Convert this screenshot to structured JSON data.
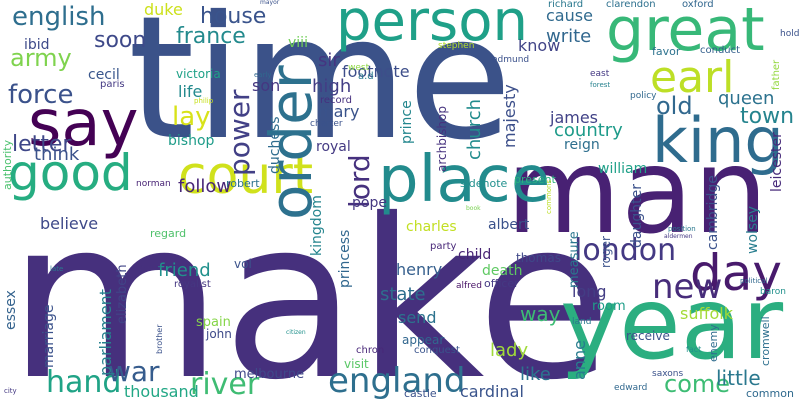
{
  "words": [
    {
      "text": "make",
      "color": "#46307d"
    },
    {
      "text": "time",
      "color": "#3b5289"
    },
    {
      "text": "man",
      "color": "#482173"
    },
    {
      "text": "year",
      "color": "#2bae80"
    },
    {
      "text": "place",
      "color": "#228b8d"
    },
    {
      "text": "king",
      "color": "#2f6c8e"
    },
    {
      "text": "person",
      "color": "#1fa088"
    },
    {
      "text": "great",
      "color": "#37b878"
    },
    {
      "text": "say",
      "color": "#440154"
    },
    {
      "text": "good",
      "color": "#26ad81"
    },
    {
      "text": "court",
      "color": "#d0e11c"
    },
    {
      "text": "order",
      "color": "#2d718e"
    },
    {
      "text": "day",
      "color": "#481a6c"
    },
    {
      "text": "earl",
      "color": "#bddf26"
    },
    {
      "text": "england",
      "color": "#2e6f8e"
    },
    {
      "text": "hand",
      "color": "#20a386"
    },
    {
      "text": "river",
      "color": "#3fbc73"
    },
    {
      "text": "war",
      "color": "#365c8d"
    },
    {
      "text": "new",
      "color": "#472c7a"
    },
    {
      "text": "london",
      "color": "#443983"
    },
    {
      "text": "power",
      "color": "#424086"
    },
    {
      "text": "lord",
      "color": "#46317e"
    },
    {
      "text": "old",
      "color": "#31688e"
    },
    {
      "text": "town",
      "color": "#25848e"
    },
    {
      "text": "queen",
      "color": "#2c728e"
    },
    {
      "text": "come",
      "color": "#3dbc74"
    },
    {
      "text": "force",
      "color": "#3b528b"
    },
    {
      "text": "army",
      "color": "#7fd34e"
    },
    {
      "text": "english",
      "color": "#2e6e8e"
    },
    {
      "text": "house",
      "color": "#3a548c"
    },
    {
      "text": "france",
      "color": "#238a8d"
    },
    {
      "text": "soon",
      "color": "#3e4989"
    },
    {
      "text": "duke",
      "color": "#cde11d"
    },
    {
      "text": "footnote",
      "color": "#3d4e8a"
    },
    {
      "text": "sir",
      "color": "#453581"
    },
    {
      "text": "viii",
      "color": "#70cf57"
    },
    {
      "text": "ibid",
      "color": "#3e4a89"
    },
    {
      "text": "cause",
      "color": "#306a8e"
    },
    {
      "text": "write",
      "color": "#31678e"
    },
    {
      "text": "know",
      "color": "#414487"
    },
    {
      "text": "richard",
      "color": "#2a788e"
    },
    {
      "text": "clarendon",
      "color": "#2d708e"
    },
    {
      "text": "oxford",
      "color": "#31668e"
    },
    {
      "text": "stephen",
      "color": "#b5de2b"
    },
    {
      "text": "edmund",
      "color": "#3b518b"
    },
    {
      "text": "conduct",
      "color": "#34608d"
    },
    {
      "text": "favor",
      "color": "#2c728e"
    },
    {
      "text": "letter",
      "color": "#3f4788"
    },
    {
      "text": "lay",
      "color": "#d8e219"
    },
    {
      "text": "life",
      "color": "#238a8d"
    },
    {
      "text": "son",
      "color": "#453781"
    },
    {
      "text": "victoria",
      "color": "#1fa187"
    },
    {
      "text": "cecil",
      "color": "#39568c"
    },
    {
      "text": "high",
      "color": "#433e85"
    },
    {
      "text": "mary",
      "color": "#3a538b"
    },
    {
      "text": "james",
      "color": "#414287"
    },
    {
      "text": "country",
      "color": "#1e9b8a"
    },
    {
      "text": "reign",
      "color": "#2e6f8e"
    },
    {
      "text": "church",
      "color": "#228c8d"
    },
    {
      "text": "majesty",
      "color": "#3c4f8a"
    },
    {
      "text": "archbishop",
      "color": "#46327e"
    },
    {
      "text": "prince",
      "color": "#24878e"
    },
    {
      "text": "bishop",
      "color": "#1e9c89"
    },
    {
      "text": "think",
      "color": "#3b528b"
    },
    {
      "text": "follow",
      "color": "#482677"
    },
    {
      "text": "william",
      "color": "#1fa088"
    },
    {
      "text": "duchess",
      "color": "#2f6c8e"
    },
    {
      "text": "royal",
      "color": "#443a83"
    },
    {
      "text": "record",
      "color": "#462f7e"
    },
    {
      "text": "believe",
      "color": "#3e4989"
    },
    {
      "text": "robert",
      "color": "#2c728e"
    },
    {
      "text": "daughter",
      "color": "#3b518b"
    },
    {
      "text": "cambridge",
      "color": "#3b528b"
    },
    {
      "text": "leicester",
      "color": "#472a7a"
    },
    {
      "text": "wolsey",
      "color": "#287d8e"
    },
    {
      "text": "pope",
      "color": "#453781"
    },
    {
      "text": "kingdom",
      "color": "#25858e"
    },
    {
      "text": "charles",
      "color": "#c2df23"
    },
    {
      "text": "albert",
      "color": "#3b528b"
    },
    {
      "text": "sidenote",
      "color": "#21908d"
    },
    {
      "text": "present",
      "color": "#2ab07f"
    },
    {
      "text": "princess",
      "color": "#31678e"
    },
    {
      "text": "friend",
      "color": "#21918c"
    },
    {
      "text": "henry",
      "color": "#355f8d"
    },
    {
      "text": "child",
      "color": "#482475"
    },
    {
      "text": "state",
      "color": "#2e6e8e"
    },
    {
      "text": "death",
      "color": "#5ec962"
    },
    {
      "text": "suffolk",
      "color": "#a2da37"
    },
    {
      "text": "long",
      "color": "#433d84"
    },
    {
      "text": "send",
      "color": "#2c738e"
    },
    {
      "text": "way",
      "color": "#3dbc74"
    },
    {
      "text": "lady",
      "color": "#a0da39"
    },
    {
      "text": "parliament",
      "color": "#26818e"
    },
    {
      "text": "elizabeth",
      "color": "#414487"
    },
    {
      "text": "marriage",
      "color": "#3b528b"
    },
    {
      "text": "thomas",
      "color": "#3f4788"
    },
    {
      "text": "measure",
      "color": "#2a778e"
    },
    {
      "text": "roger",
      "color": "#3b528b"
    },
    {
      "text": "essex",
      "color": "#33628d"
    },
    {
      "text": "spain",
      "color": "#86d549"
    },
    {
      "text": "john",
      "color": "#3e4a89"
    },
    {
      "text": "melbourne",
      "color": "#3f4889"
    },
    {
      "text": "thousand",
      "color": "#22a785"
    },
    {
      "text": "visit",
      "color": "#58c765"
    },
    {
      "text": "chron",
      "color": "#482878"
    },
    {
      "text": "castle",
      "color": "#3b528b"
    },
    {
      "text": "cardinal",
      "color": "#3a548c"
    },
    {
      "text": "like",
      "color": "#2b748e"
    },
    {
      "text": "anne",
      "color": "#287c8e"
    },
    {
      "text": "little",
      "color": "#2a788e"
    },
    {
      "text": "common",
      "color": "#306a8e"
    },
    {
      "text": "enemy",
      "color": "#2f6c8e"
    },
    {
      "text": "cromwell",
      "color": "#2d708e"
    },
    {
      "text": "room",
      "color": "#1f9e89"
    },
    {
      "text": "receive",
      "color": "#3b518b"
    },
    {
      "text": "appear",
      "color": "#31668e"
    },
    {
      "text": "conquest",
      "color": "#3a548c"
    },
    {
      "text": "officer",
      "color": "#443a83"
    },
    {
      "text": "alfred",
      "color": "#481467"
    },
    {
      "text": "royalist",
      "color": "#453781"
    },
    {
      "text": "vol",
      "color": "#3b528b"
    },
    {
      "text": "regard",
      "color": "#4fc16b"
    },
    {
      "text": "norman",
      "color": "#482475"
    },
    {
      "text": "party",
      "color": "#482878"
    },
    {
      "text": "authority",
      "color": "#4ac16d"
    },
    {
      "text": "paris",
      "color": "#443983"
    },
    {
      "text": "charter",
      "color": "#3b528b"
    },
    {
      "text": "early",
      "color": "#31688e"
    },
    {
      "text": "philip",
      "color": "#c8e020"
    },
    {
      "text": "a.d",
      "color": "#2a788e"
    },
    {
      "text": "west",
      "color": "#8fd744"
    },
    {
      "text": "east",
      "color": "#443983"
    },
    {
      "text": "policy",
      "color": "#31688e"
    },
    {
      "text": "father",
      "color": "#95d840"
    },
    {
      "text": "mayor",
      "color": "#3b528b"
    },
    {
      "text": "baron",
      "color": "#21918c"
    },
    {
      "text": "political",
      "color": "#31688e"
    },
    {
      "text": "position",
      "color": "#2a788e"
    },
    {
      "text": "aldermen",
      "color": "#443983"
    },
    {
      "text": "fact",
      "color": "#21918c"
    },
    {
      "text": "land",
      "color": "#2a788e"
    },
    {
      "text": "edward",
      "color": "#31688e"
    },
    {
      "text": "saxons",
      "color": "#3b528b"
    },
    {
      "text": "forest",
      "color": "#26828e"
    },
    {
      "text": "book",
      "color": "#7ad151"
    },
    {
      "text": "journal",
      "color": "#46327e"
    },
    {
      "text": "citizen",
      "color": "#21918c"
    },
    {
      "text": "city",
      "color": "#443983"
    },
    {
      "text": "late",
      "color": "#2a788e"
    },
    {
      "text": "brother",
      "color": "#3b528b"
    },
    {
      "text": "commons",
      "color": "#bddf26"
    },
    {
      "text": "hold",
      "color": "#3b528b"
    }
  ]
}
